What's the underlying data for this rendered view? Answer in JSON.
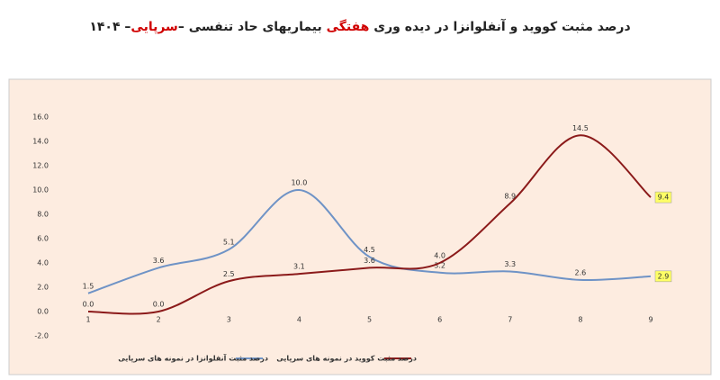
{
  "chart_data": {
    "type": "line",
    "title": [
      {
        "text": "درصد مثبت کووید و آنفلوانزا در دیده وری "
      },
      {
        "text": "هفتگی",
        "color": "#d00000"
      },
      {
        "text": " بیماریهای حاد تنفسی –"
      },
      {
        "text": "سرپایی",
        "color": "#d00000"
      },
      {
        "text": "– ۱۴۰۴"
      }
    ],
    "categories": [
      "1",
      "2",
      "3",
      "4",
      "5",
      "6",
      "7",
      "8",
      "9"
    ],
    "series": [
      {
        "name": "درصد مثبت آنفلوانزا در نمونه های سرپایی",
        "color": "#6f93c6",
        "values": [
          1.5,
          3.6,
          5.1,
          10.0,
          4.5,
          3.2,
          3.3,
          2.6,
          2.9
        ],
        "value_labels": [
          "1.5",
          "3.6",
          "5.1",
          "10.0",
          "4.5",
          "3.2",
          "3.3",
          "2.6",
          "2.9"
        ]
      },
      {
        "name": "درصد مثبت کووید در نمونه های سرپایی",
        "color": "#8b1a1a",
        "values": [
          0.0,
          0.0,
          2.5,
          3.1,
          3.6,
          4.0,
          8.9,
          14.5,
          9.4
        ],
        "value_labels": [
          "0.0",
          "0.0",
          "2.5",
          "3.1",
          "3.6",
          "4.0",
          "8.9",
          "14.5",
          "9.4"
        ]
      }
    ],
    "ylim": [
      -2,
      16
    ],
    "yticks": [
      {
        "value": -2,
        "label": "-2.0"
      },
      {
        "value": 0,
        "label": "0.0"
      },
      {
        "value": 2,
        "label": "2.0"
      },
      {
        "value": 4,
        "label": "4.0"
      },
      {
        "value": 6,
        "label": "6.0"
      },
      {
        "value": 8,
        "label": "8.0"
      },
      {
        "value": 10,
        "label": "10.0"
      },
      {
        "value": 12,
        "label": "12.0"
      },
      {
        "value": 14,
        "label": "14.0"
      },
      {
        "value": 16,
        "label": "16.0"
      }
    ],
    "grid": false,
    "smooth": true,
    "highlight_last_color": "#ffff66",
    "background": "#fdece0"
  }
}
